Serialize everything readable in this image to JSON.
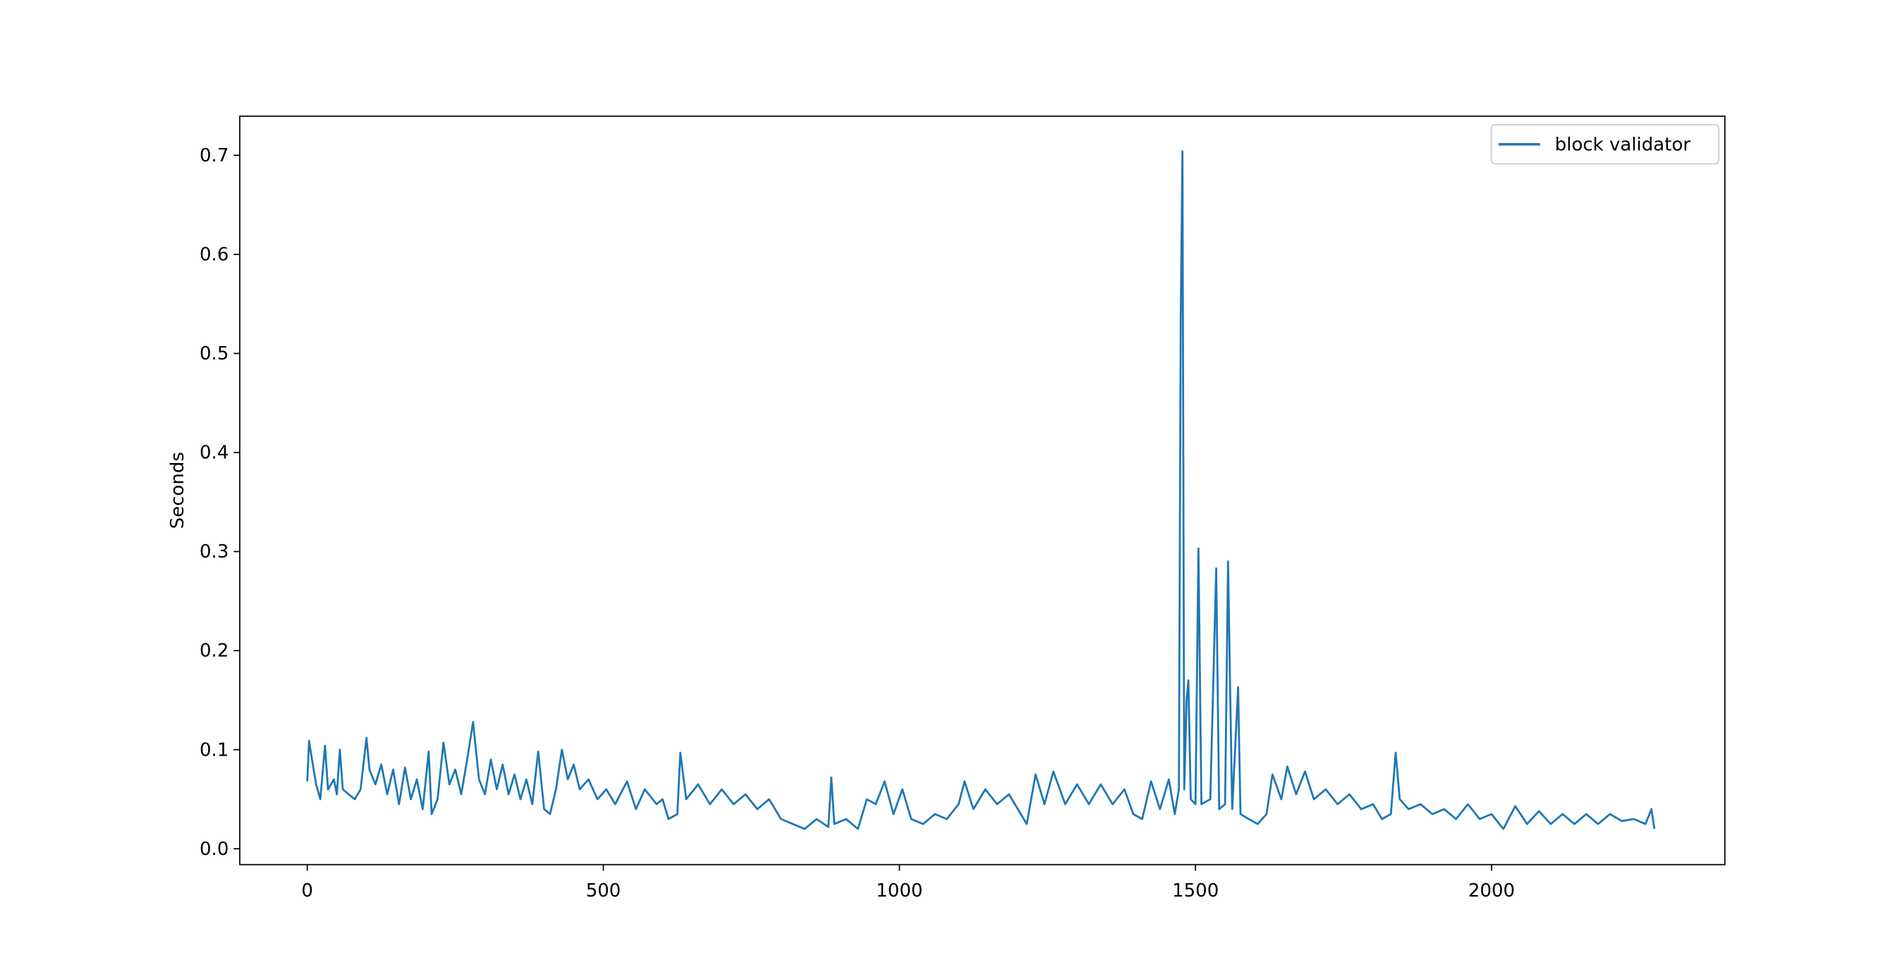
{
  "chart_data": {
    "type": "line",
    "ylabel": "Seconds",
    "legend": "upper right",
    "x": [
      0,
      3,
      8,
      15,
      22,
      30,
      35,
      45,
      50,
      55,
      60,
      70,
      80,
      90,
      100,
      105,
      115,
      125,
      135,
      145,
      155,
      165,
      175,
      185,
      195,
      205,
      210,
      220,
      230,
      240,
      250,
      260,
      270,
      280,
      290,
      300,
      310,
      320,
      330,
      340,
      350,
      360,
      370,
      380,
      390,
      400,
      410,
      420,
      430,
      440,
      450,
      460,
      475,
      490,
      505,
      520,
      540,
      555,
      570,
      590,
      600,
      610,
      625,
      630,
      640,
      660,
      680,
      700,
      720,
      740,
      760,
      780,
      800,
      820,
      840,
      860,
      880,
      885,
      890,
      910,
      930,
      945,
      960,
      975,
      990,
      1005,
      1020,
      1040,
      1060,
      1080,
      1100,
      1110,
      1125,
      1145,
      1165,
      1185,
      1200,
      1215,
      1230,
      1245,
      1260,
      1280,
      1300,
      1320,
      1340,
      1360,
      1380,
      1395,
      1410,
      1425,
      1440,
      1455,
      1465,
      1472,
      1475,
      1478,
      1481,
      1485,
      1488,
      1492,
      1500,
      1505,
      1510,
      1525,
      1535,
      1540,
      1550,
      1555,
      1558,
      1562,
      1572,
      1576,
      1590,
      1605,
      1620,
      1630,
      1645,
      1655,
      1670,
      1685,
      1700,
      1720,
      1740,
      1760,
      1780,
      1800,
      1815,
      1830,
      1838,
      1845,
      1860,
      1880,
      1900,
      1920,
      1940,
      1960,
      1980,
      2000,
      2020,
      2040,
      2060,
      2080,
      2100,
      2120,
      2140,
      2160,
      2180,
      2200,
      2220,
      2240,
      2260,
      2270,
      2275
    ],
    "series": [
      {
        "name": "block validator",
        "color": "#1f77b4",
        "values": [
          0.068,
          0.109,
          0.09,
          0.065,
          0.05,
          0.104,
          0.06,
          0.07,
          0.055,
          0.1,
          0.06,
          0.055,
          0.05,
          0.06,
          0.112,
          0.08,
          0.065,
          0.085,
          0.055,
          0.08,
          0.045,
          0.082,
          0.05,
          0.07,
          0.04,
          0.098,
          0.035,
          0.05,
          0.107,
          0.065,
          0.08,
          0.055,
          0.09,
          0.128,
          0.07,
          0.055,
          0.09,
          0.06,
          0.085,
          0.055,
          0.075,
          0.05,
          0.07,
          0.045,
          0.098,
          0.04,
          0.035,
          0.06,
          0.1,
          0.07,
          0.085,
          0.06,
          0.07,
          0.05,
          0.06,
          0.045,
          0.068,
          0.04,
          0.06,
          0.045,
          0.05,
          0.03,
          0.035,
          0.097,
          0.05,
          0.065,
          0.045,
          0.06,
          0.045,
          0.055,
          0.04,
          0.05,
          0.03,
          0.025,
          0.02,
          0.03,
          0.022,
          0.072,
          0.025,
          0.03,
          0.02,
          0.05,
          0.045,
          0.068,
          0.035,
          0.06,
          0.03,
          0.025,
          0.035,
          0.03,
          0.045,
          0.068,
          0.04,
          0.06,
          0.045,
          0.055,
          0.04,
          0.025,
          0.075,
          0.045,
          0.078,
          0.045,
          0.065,
          0.045,
          0.065,
          0.045,
          0.06,
          0.035,
          0.03,
          0.068,
          0.04,
          0.07,
          0.035,
          0.06,
          0.53,
          0.704,
          0.06,
          0.15,
          0.17,
          0.05,
          0.045,
          0.303,
          0.045,
          0.05,
          0.283,
          0.04,
          0.045,
          0.29,
          0.18,
          0.04,
          0.163,
          0.035,
          0.03,
          0.025,
          0.035,
          0.075,
          0.05,
          0.083,
          0.055,
          0.078,
          0.05,
          0.06,
          0.045,
          0.055,
          0.04,
          0.045,
          0.03,
          0.035,
          0.097,
          0.05,
          0.04,
          0.045,
          0.035,
          0.04,
          0.03,
          0.045,
          0.03,
          0.035,
          0.02,
          0.043,
          0.025,
          0.038,
          0.025,
          0.035,
          0.025,
          0.035,
          0.025,
          0.035,
          0.028,
          0.03,
          0.025,
          0.04,
          0.02
        ]
      }
    ],
    "xlim": [
      -114,
      2394
    ],
    "xticks": [
      0,
      500,
      1000,
      1500,
      2000
    ],
    "ylim": [
      -0.016,
      0.7395
    ],
    "yticks": [
      {
        "value": 0,
        "label": "0.0"
      },
      0.1,
      0.2,
      0.3,
      0.4,
      0.5,
      0.6,
      0.7
    ]
  }
}
